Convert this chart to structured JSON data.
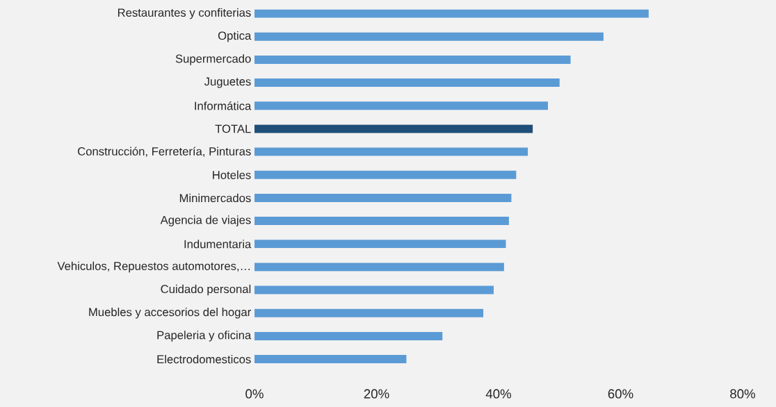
{
  "chart_data": {
    "type": "bar",
    "orientation": "horizontal",
    "categories": [
      "Restaurantes y confiterias",
      "Optica",
      "Supermercado",
      "Juguetes",
      "Informática",
      "TOTAL",
      "Construcción, Ferretería, Pinturas",
      "Hoteles",
      "Minimercados",
      "Agencia de viajes",
      "Indumentaria",
      "Vehiculos, Repuestos automotores,…",
      "Cuidado personal",
      "Muebles y accesorios del hogar",
      "Papeleria y oficina",
      "Electrodomesticos"
    ],
    "values": [
      64.6,
      57.2,
      51.8,
      50.0,
      48.1,
      45.6,
      44.8,
      42.9,
      42.1,
      41.7,
      41.2,
      40.9,
      39.2,
      37.5,
      30.8,
      24.9
    ],
    "colors": [
      "#5b9bd5",
      "#5b9bd5",
      "#5b9bd5",
      "#5b9bd5",
      "#5b9bd5",
      "#1f4e79",
      "#5b9bd5",
      "#5b9bd5",
      "#5b9bd5",
      "#5b9bd5",
      "#5b9bd5",
      "#5b9bd5",
      "#5b9bd5",
      "#5b9bd5",
      "#5b9bd5",
      "#5b9bd5"
    ],
    "xlim": [
      0,
      80
    ],
    "xticks": [
      {
        "value": 0,
        "label": "0%"
      },
      {
        "value": 20,
        "label": "20%"
      },
      {
        "value": 40,
        "label": "40%"
      },
      {
        "value": 60,
        "label": "60%"
      },
      {
        "value": 80,
        "label": "80%"
      }
    ],
    "grid": false
  }
}
